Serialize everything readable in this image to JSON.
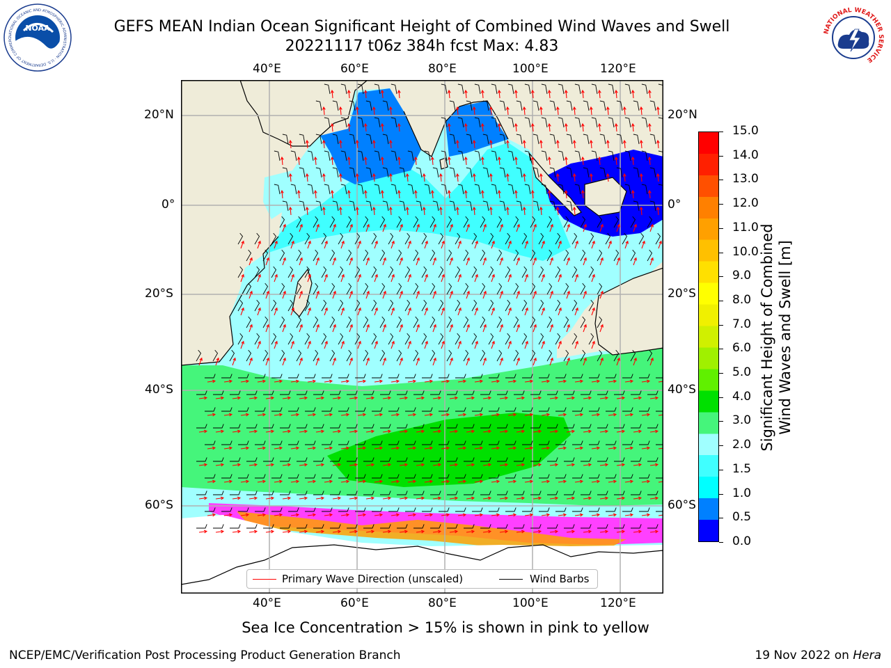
{
  "title_line1": "GEFS MEAN Indian Ocean Significant Height of Combined Wind Waves and Swell",
  "title_line2": "20221117 t06z 384h fcst   Max: 4.83",
  "lon_ticks": [
    "40°E",
    "60°E",
    "80°E",
    "100°E",
    "120°E"
  ],
  "lat_ticks": [
    "20°N",
    "0°",
    "20°S",
    "40°S",
    "60°S"
  ],
  "colorbar": {
    "title_line1": "Significant Height of Combined",
    "title_line2": "Wind Waves and Swell [m]",
    "labels": [
      "15.0",
      "14.0",
      "13.0",
      "12.0",
      "11.0",
      "10.0",
      "9.0",
      "8.0",
      "7.0",
      "6.0",
      "5.0",
      "4.0",
      "3.0",
      "2.0",
      "1.5",
      "1.0",
      "0.5",
      "0.0"
    ],
    "colors": [
      "#0000ff",
      "#0080ff",
      "#00ffff",
      "#40ffff",
      "#a0ffff",
      "#45f57b",
      "#00e000",
      "#60f000",
      "#a0f000",
      "#d0f000",
      "#f0f000",
      "#ffff00",
      "#ffe000",
      "#ffc000",
      "#ffa000",
      "#ff8000",
      "#ff5000",
      "#ff2000",
      "#ff0000"
    ]
  },
  "legend": {
    "wave_label": "Primary Wave Direction (unscaled)",
    "wind_label": "Wind Barbs",
    "wave_color": "#ff0000",
    "wind_color": "#000000"
  },
  "caption": "Sea Ice Concentration > 15% is shown in pink to yellow",
  "credit": "NCEP/EMC/Verification Post Processing Product Generation Branch",
  "date_text": "19 Nov 2022 on",
  "date_host": "Hera",
  "max_value": 4.83,
  "logos": {
    "left": "noara-logo",
    "left_ring_text": "NATIONAL OCEANIC AND ATMOSPHERIC ADMINISTRATION · U.S. DEPARTMENT OF COMMERCE",
    "left_center": "NOAA",
    "right": "nws-logo",
    "right_ring_text": "NATIONAL WEATHER SERVICE"
  },
  "map_colors": {
    "land": "#efecd9",
    "ocean_light": "#a0ffff",
    "ocean_mid": "#40ffff",
    "ocean_cyan": "#00ffff",
    "ocean_blue": "#0080ff",
    "ocean_deep": "#0000ff",
    "band_green": "#45f57b",
    "band_core": "#00e000",
    "ice_pink": "#ff40ff",
    "ice_orange": "#ffa000"
  }
}
